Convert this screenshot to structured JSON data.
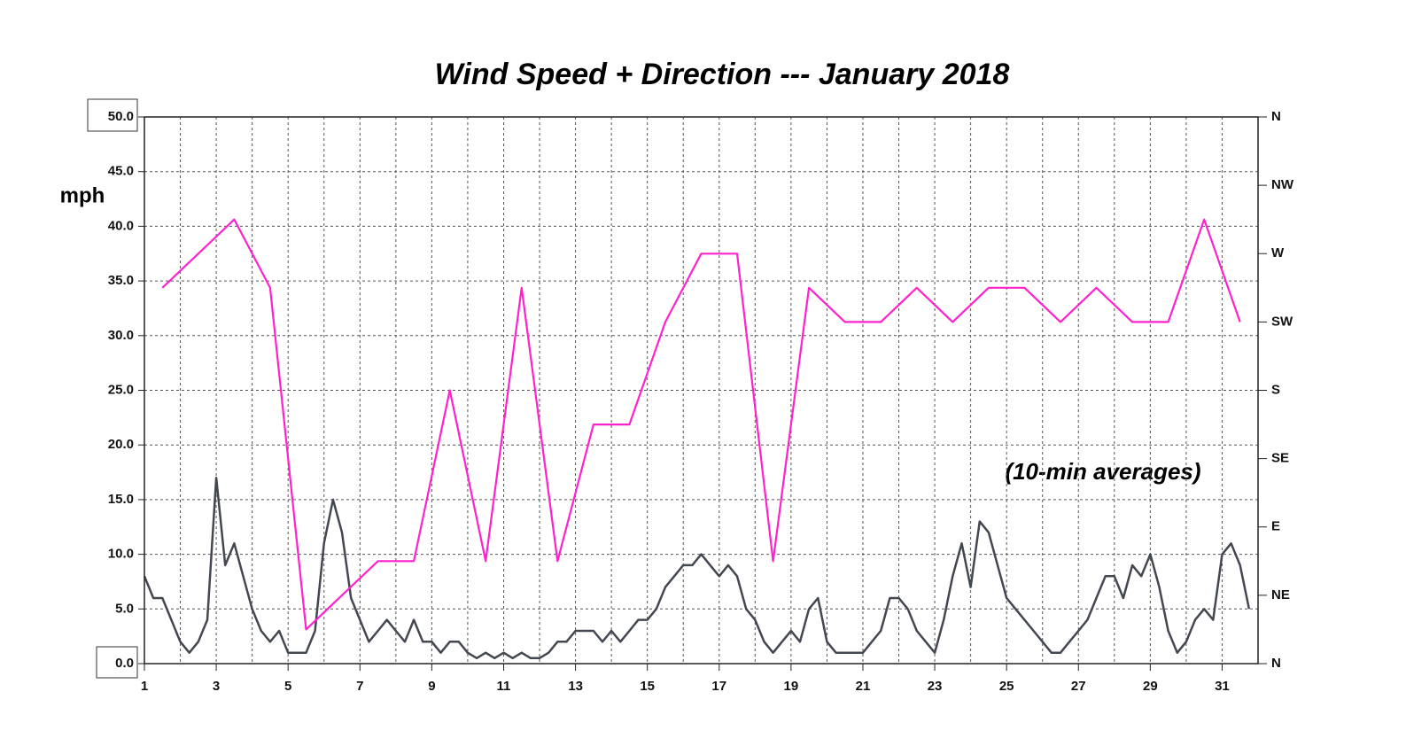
{
  "chart_data": {
    "type": "line",
    "title": "Wind Speed + Direction --- January 2018",
    "ylabel": "mph",
    "annotation": "(10-min averages)",
    "xlim": [
      1,
      32
    ],
    "xticks": [
      1,
      3,
      5,
      7,
      9,
      11,
      13,
      15,
      17,
      19,
      21,
      23,
      25,
      27,
      29,
      31
    ],
    "ylim": [
      0,
      50
    ],
    "yticks": [
      {
        "value": 0,
        "label": "0.0"
      },
      {
        "value": 5,
        "label": "5.0"
      },
      {
        "value": 10,
        "label": "10.0"
      },
      {
        "value": 15,
        "label": "15.0"
      },
      {
        "value": 20,
        "label": "20.0"
      },
      {
        "value": 25,
        "label": "25.0"
      },
      {
        "value": 30,
        "label": "30.0"
      },
      {
        "value": 35,
        "label": "35.0"
      },
      {
        "value": 40,
        "label": "40.0"
      },
      {
        "value": 45,
        "label": "45.0"
      },
      {
        "value": 50,
        "label": "50.0"
      }
    ],
    "y2lim": [
      0,
      360
    ],
    "y2ticks": [
      {
        "value": 0,
        "label": "N"
      },
      {
        "value": 45,
        "label": "NE"
      },
      {
        "value": 90,
        "label": "E"
      },
      {
        "value": 135,
        "label": "SE"
      },
      {
        "value": 180,
        "label": "S"
      },
      {
        "value": 225,
        "label": "SW"
      },
      {
        "value": 270,
        "label": "W"
      },
      {
        "value": 315,
        "label": "NW"
      },
      {
        "value": 360,
        "label": "N"
      }
    ],
    "grid": true,
    "series": [
      {
        "color": "#434850",
        "x": [
          1,
          1.25,
          1.5,
          1.75,
          2,
          2.25,
          2.5,
          2.75,
          3,
          3.25,
          3.5,
          3.75,
          4,
          4.25,
          4.5,
          4.75,
          5,
          5.25,
          5.5,
          5.75,
          6,
          6.25,
          6.5,
          6.75,
          7,
          7.25,
          7.5,
          7.75,
          8,
          8.25,
          8.5,
          8.75,
          9,
          9.25,
          9.5,
          9.75,
          10,
          10.25,
          10.5,
          10.75,
          11,
          11.25,
          11.5,
          11.75,
          12,
          12.25,
          12.5,
          12.75,
          13,
          13.25,
          13.5,
          13.75,
          14,
          14.25,
          14.5,
          14.75,
          15,
          15.25,
          15.5,
          15.75,
          16,
          16.25,
          16.5,
          16.75,
          17,
          17.25,
          17.5,
          17.75,
          18,
          18.25,
          18.5,
          18.75,
          19,
          19.25,
          19.5,
          19.75,
          20,
          20.25,
          20.5,
          20.75,
          21,
          21.25,
          21.5,
          21.75,
          22,
          22.25,
          22.5,
          22.75,
          23,
          23.25,
          23.5,
          23.75,
          24,
          24.25,
          24.5,
          24.75,
          25,
          25.25,
          25.5,
          25.75,
          26,
          26.25,
          26.5,
          26.75,
          27,
          27.25,
          27.5,
          27.75,
          28,
          28.25,
          28.5,
          28.75,
          29,
          29.25,
          29.5,
          29.75,
          30,
          30.25,
          30.5,
          30.75,
          31,
          31.25,
          31.5,
          31.75
        ],
        "values": [
          8,
          6,
          6,
          4,
          2,
          1,
          2,
          4,
          17,
          9,
          11,
          8,
          5,
          3,
          2,
          3,
          1,
          1,
          1,
          3,
          11,
          15,
          12,
          6,
          4,
          2,
          3,
          4,
          3,
          2,
          4,
          2,
          2,
          1,
          2,
          2,
          1,
          0.5,
          1,
          0.5,
          1,
          0.5,
          1,
          0.5,
          0.5,
          1,
          2,
          2,
          3,
          3,
          3,
          2,
          3,
          2,
          3,
          4,
          4,
          5,
          7,
          8,
          9,
          9,
          10,
          9,
          8,
          9,
          8,
          5,
          4,
          2,
          1,
          2,
          3,
          2,
          5,
          6,
          2,
          1,
          1,
          1,
          1,
          2,
          3,
          6,
          6,
          5,
          3,
          2,
          1,
          4,
          8,
          11,
          7,
          13,
          12,
          9,
          6,
          5,
          4,
          3,
          2,
          1,
          1,
          2,
          3,
          4,
          6,
          8,
          8,
          6,
          9,
          8,
          10,
          7,
          3,
          1,
          2,
          4,
          5,
          4,
          10,
          11,
          9,
          5
        ]
      },
      {
        "color": "#ff22cc",
        "axis": "y2",
        "x": [
          1.5,
          3.5,
          4.5,
          5.5,
          7.5,
          8.5,
          9.5,
          10.5,
          11.5,
          12.5,
          13.5,
          14.5,
          15.5,
          16.5,
          17.5,
          18.5,
          19.5,
          20.5,
          21.5,
          22.5,
          23.5,
          24.5,
          25.5,
          26.5,
          27.5,
          28.5,
          29.5,
          30.5,
          31.5
        ],
        "values": [
          247.5,
          292.5,
          247.5,
          22.5,
          67.5,
          67.5,
          180,
          67.5,
          247.5,
          67.5,
          157.5,
          157.5,
          225,
          270,
          270,
          67.5,
          247.5,
          225,
          225,
          247.5,
          225,
          247.5,
          247.5,
          225,
          247.5,
          225,
          225,
          292.5,
          225
        ]
      }
    ]
  }
}
